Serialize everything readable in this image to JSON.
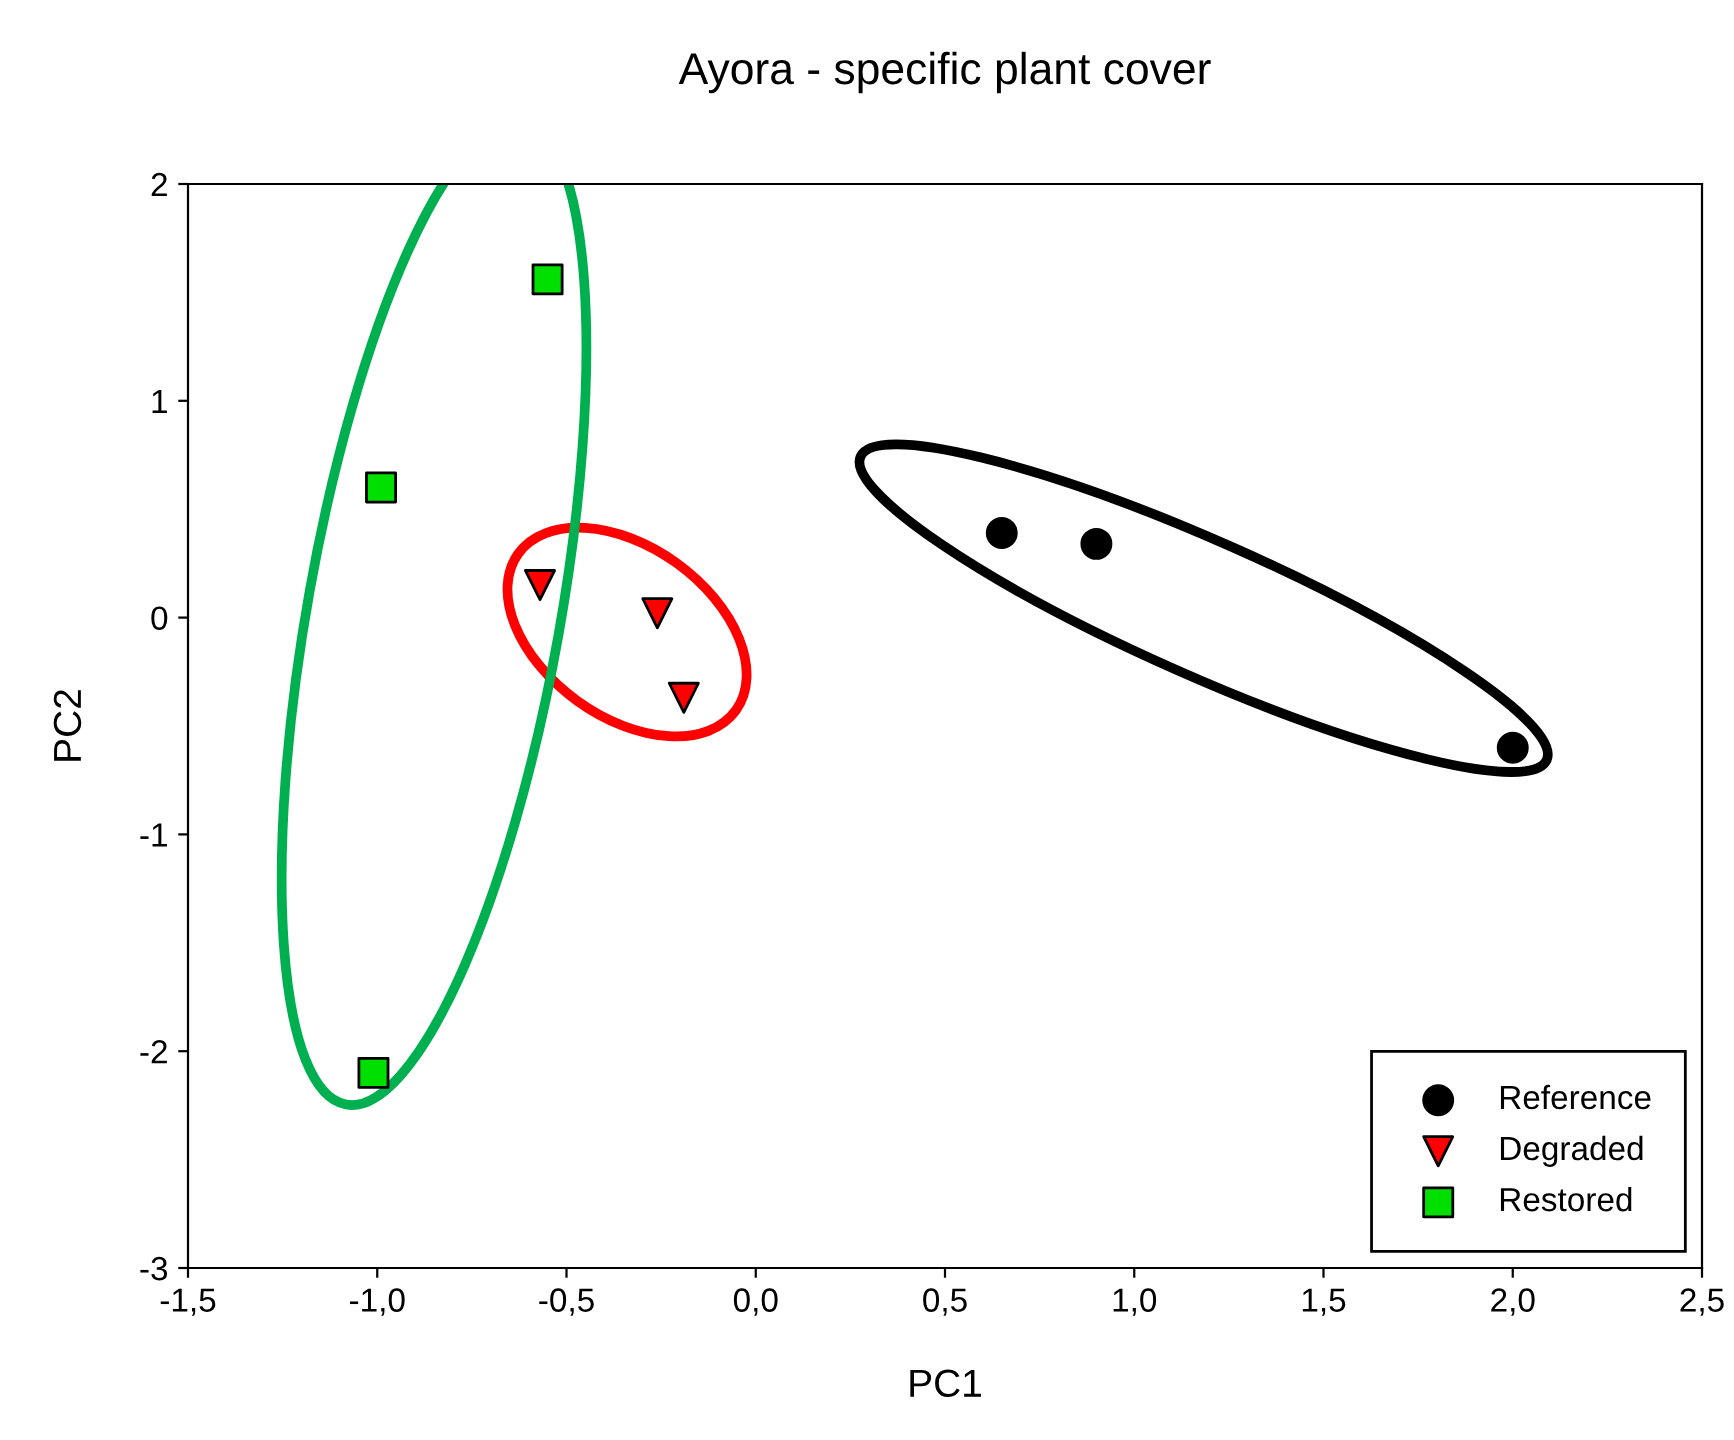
{
  "chart_data": {
    "type": "scatter",
    "title": "Ayora - specific plant cover",
    "xlabel": "PC1",
    "ylabel": "PC2",
    "xlim": [
      -1.5,
      2.5
    ],
    "ylim": [
      -3,
      2
    ],
    "xticks": [
      {
        "value": -1.5,
        "label": "-1,5"
      },
      {
        "value": -1.0,
        "label": "-1,0"
      },
      {
        "value": -0.5,
        "label": "-0,5"
      },
      {
        "value": 0.0,
        "label": "0,0"
      },
      {
        "value": 0.5,
        "label": "0,5"
      },
      {
        "value": 1.0,
        "label": "1,0"
      },
      {
        "value": 1.5,
        "label": "1,5"
      },
      {
        "value": 2.0,
        "label": "2,0"
      },
      {
        "value": 2.5,
        "label": "2,5"
      }
    ],
    "yticks": [
      -3,
      -2,
      -1,
      0,
      1,
      2
    ],
    "grid": false,
    "legend": "bottom right",
    "series": [
      {
        "name": "Reference",
        "color": "#000000",
        "marker": "circle",
        "x": [
          0.65,
          0.9,
          2.0
        ],
        "values": [
          0.39,
          0.34,
          -0.6
        ]
      },
      {
        "name": "Degraded",
        "color": "#ff0000",
        "marker": "triangle",
        "x": [
          -0.57,
          -0.26,
          -0.19
        ],
        "values": [
          0.15,
          0.02,
          -0.37
        ]
      },
      {
        "name": "Restored",
        "color": "#00e000",
        "marker": "square",
        "x": [
          -0.55,
          -0.99,
          -1.01
        ],
        "values": [
          1.56,
          0.6,
          -2.1
        ]
      }
    ]
  }
}
